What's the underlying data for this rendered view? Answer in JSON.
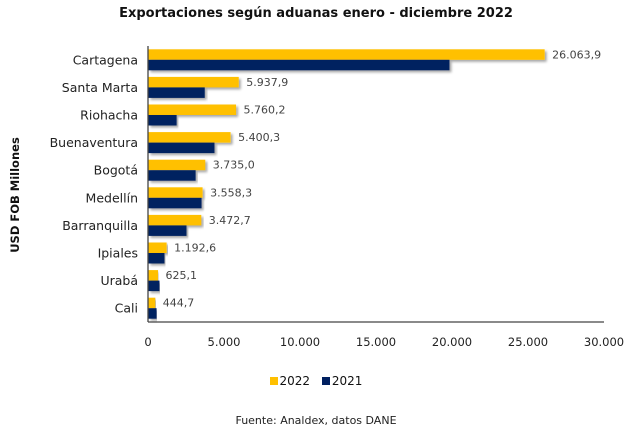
{
  "chart_data": {
    "type": "bar",
    "orientation": "horizontal",
    "title": "Exportaciones según aduanas enero - diciembre  2022",
    "ylabel": "USD FOB Millones",
    "xlabel": "",
    "xlim": [
      0,
      30000
    ],
    "xticks": [
      0,
      5000,
      10000,
      15000,
      20000,
      25000,
      30000
    ],
    "xtick_labels": [
      "0",
      "5.000",
      "10.000",
      "15.000",
      "20.000",
      "25.000",
      "30.000"
    ],
    "grid": false,
    "legend_position": "bottom",
    "categories": [
      "Cartagena",
      "Santa Marta",
      "Riohacha",
      "Buenaventura",
      "Bogotá",
      "Medellín",
      "Barranquilla",
      "Ipiales",
      "Urabá",
      "Cali"
    ],
    "series": [
      {
        "name": "2022",
        "color": "#FFC000",
        "values": [
          26063.9,
          5937.9,
          5760.2,
          5400.3,
          3735.0,
          3558.3,
          3472.7,
          1192.6,
          625.1,
          444.7
        ],
        "labels": [
          "26.063,9",
          "5.937,9",
          "5.760,2",
          "5.400,3",
          "3.735,0",
          "3.558,3",
          "3.472,7",
          "1.192,6",
          "625,1",
          "444,7"
        ]
      },
      {
        "name": "2021",
        "color": "#002060",
        "values": [
          19800,
          3700,
          1850,
          4340,
          3100,
          3490,
          2500,
          1050,
          720,
          530
        ]
      }
    ],
    "source": "Fuente: Analdex, datos DANE"
  }
}
